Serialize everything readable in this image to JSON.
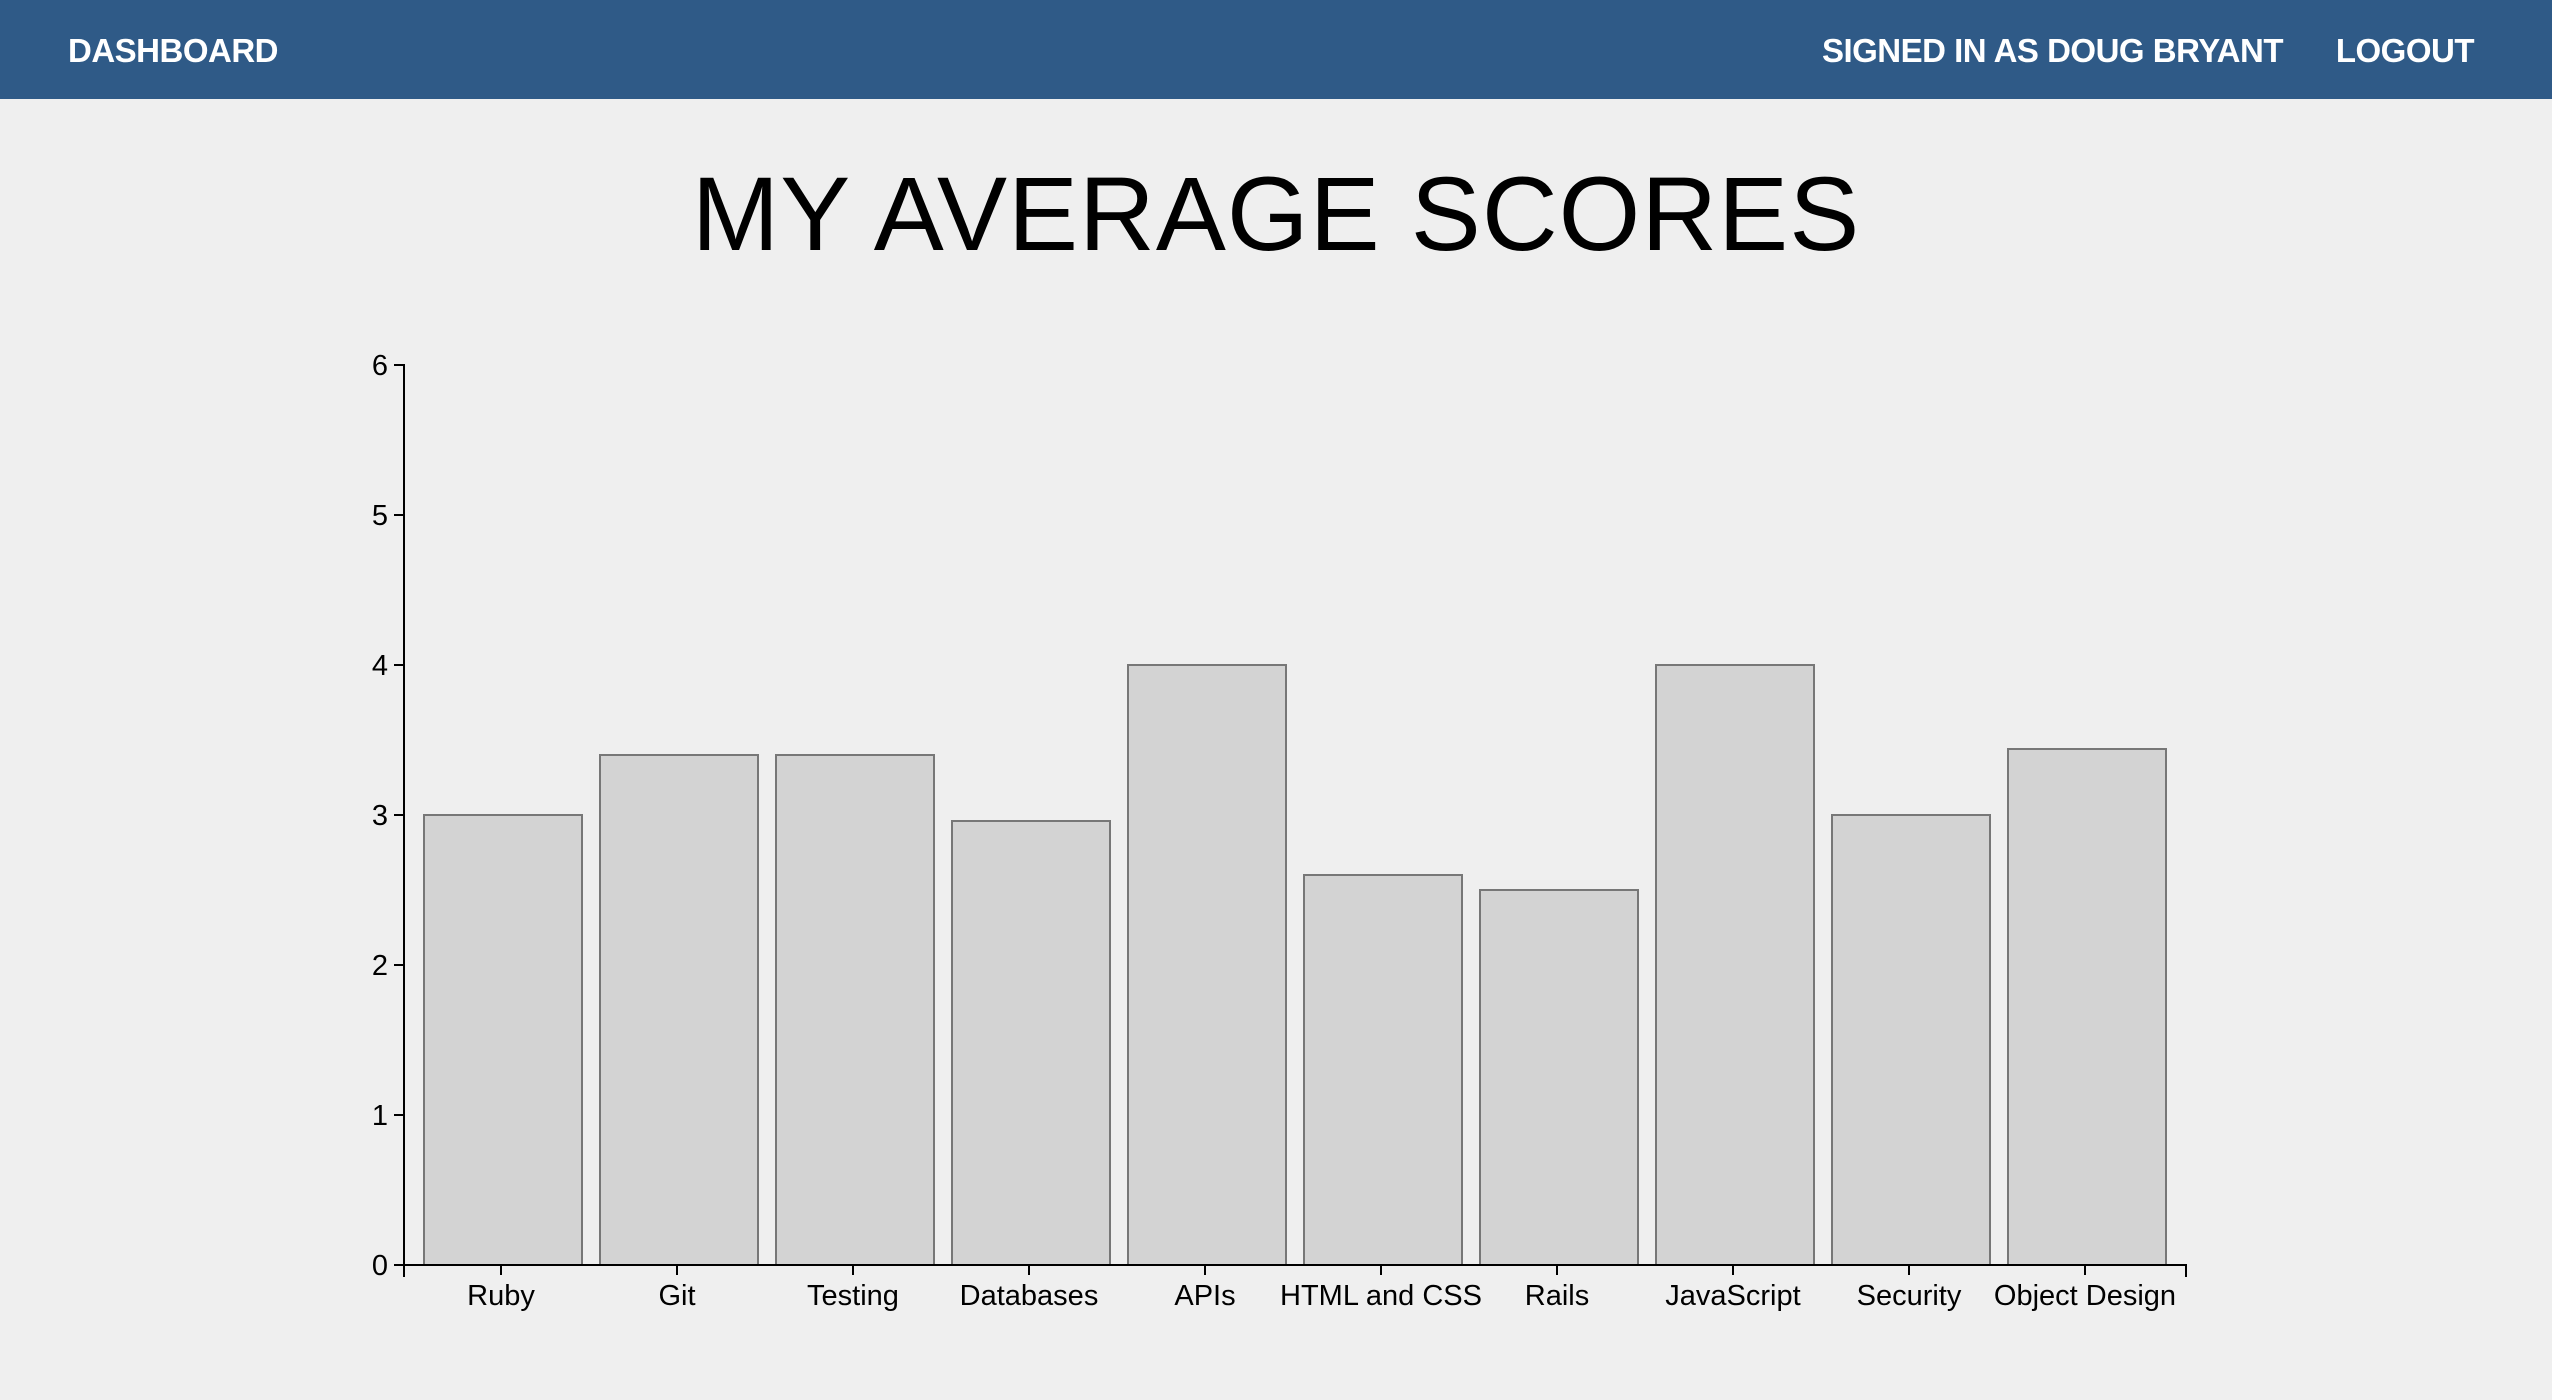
{
  "header": {
    "dashboard_label": "DASHBOARD",
    "signed_in_label": "SIGNED IN AS DOUG BRYANT",
    "logout_label": "LOGOUT",
    "background_color": "#2f5a87"
  },
  "page": {
    "title": "MY AVERAGE SCORES"
  },
  "chart_data": {
    "type": "bar",
    "title": "",
    "xlabel": "",
    "ylabel": "",
    "categories": [
      "Ruby",
      "Git",
      "Testing",
      "Databases",
      "APIs",
      "HTML and CSS",
      "Rails",
      "JavaScript",
      "Security",
      "Object Design"
    ],
    "values": [
      3.0,
      3.4,
      3.4,
      2.96,
      4.0,
      2.6,
      2.5,
      4.0,
      3.0,
      3.44
    ],
    "ylim": [
      0,
      6
    ],
    "yticks": [
      0,
      1,
      2,
      3,
      4,
      5,
      6
    ],
    "grid": false,
    "legend": "none",
    "bar_color": "#d3d3d3",
    "bar_stroke": "#777777"
  }
}
